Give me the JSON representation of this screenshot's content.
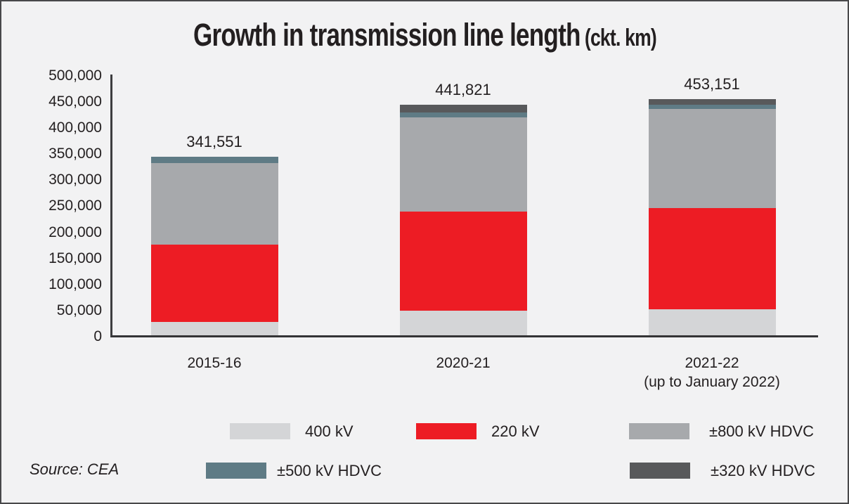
{
  "title": {
    "main": "Growth in transmission line length",
    "unit": "(ckt. km)"
  },
  "source": "Source: CEA",
  "colors": {
    "background": "#f2f2f3",
    "frame_border": "#48484a",
    "axis": "#3d3d3f",
    "text": "#231f20",
    "kv400": "#d4d5d7",
    "kv220": "#ed1c24",
    "hdvc800": "#a7a9ac",
    "hdvc500": "#5f7b85",
    "hdvc320": "#58595b"
  },
  "chart_data": {
    "type": "bar",
    "stacked": true,
    "title": "Growth in transmission line length (ckt. km)",
    "xlabel": "",
    "ylabel": "",
    "ylim": [
      0,
      500000
    ],
    "ytick_step": 50000,
    "yticks": [
      "500,000",
      "450,000",
      "400,000",
      "350,000",
      "300,000",
      "250,000",
      "200,000",
      "150,000",
      "100,000",
      "50,000",
      "0"
    ],
    "categories": [
      [
        "2015-16"
      ],
      [
        "2020-21"
      ],
      [
        "2021-22",
        "(up to January 2022)"
      ]
    ],
    "totals": [
      "341,551",
      "441,821",
      "453,151"
    ],
    "totals_values": [
      341551,
      441821,
      453151
    ],
    "segments_estimated": true,
    "series": [
      {
        "name": "400 kV",
        "color": "#d4d5d7",
        "values": [
          25051,
          46821,
          50151
        ]
      },
      {
        "name": "220 kV",
        "color": "#ed1c24",
        "values": [
          148000,
          190500,
          194000
        ]
      },
      {
        "name": "±800 kV HDVC",
        "color": "#a7a9ac",
        "values": [
          157000,
          180000,
          190000
        ]
      },
      {
        "name": "±500 kV HDVC",
        "color": "#5f7b85",
        "values": [
          11500,
          10000,
          8000
        ]
      },
      {
        "name": "±320 kV HDVC",
        "color": "#58595b",
        "values": [
          0,
          14500,
          11000
        ]
      }
    ],
    "legend_position": "bottom",
    "grid": false
  }
}
